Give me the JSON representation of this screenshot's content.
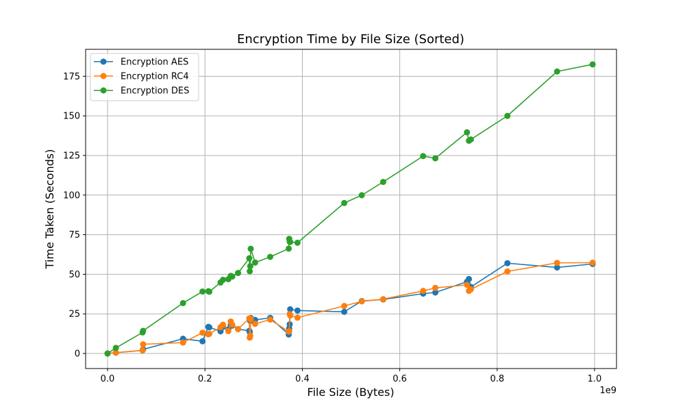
{
  "chart_data": {
    "type": "line",
    "title": "Encryption Time by File Size (Sorted)",
    "xlabel": "File Size (Bytes)",
    "ylabel": "Time Taken (Seconds)",
    "x_offset_label": "1e9",
    "xlim": [
      -0.045,
      1.045
    ],
    "ylim": [
      -9.5,
      192
    ],
    "x_ticks": [
      0.0,
      0.2,
      0.4,
      0.6,
      0.8,
      1.0
    ],
    "x_tick_labels": [
      "0.0",
      "0.2",
      "0.4",
      "0.6",
      "0.8",
      "1.0"
    ],
    "y_ticks": [
      0,
      25,
      50,
      75,
      100,
      125,
      150,
      175
    ],
    "y_tick_labels": [
      "0",
      "25",
      "50",
      "75",
      "100",
      "125",
      "150",
      "175"
    ],
    "grid": true,
    "legend_position": "top-left",
    "x": [
      0.0,
      0.017,
      0.072,
      0.073,
      0.155,
      0.195,
      0.207,
      0.209,
      0.232,
      0.237,
      0.248,
      0.253,
      0.256,
      0.268,
      0.291,
      0.292,
      0.293,
      0.294,
      0.303,
      0.334,
      0.372,
      0.373,
      0.374,
      0.375,
      0.39,
      0.486,
      0.522,
      0.566,
      0.648,
      0.673,
      0.738,
      0.742,
      0.746,
      0.821,
      0.923,
      0.996
    ],
    "series": [
      {
        "name": "Encryption AES",
        "color": "#1f77b4",
        "values": [
          0.0,
          0.5,
          2.0,
          2.6,
          9.3,
          7.7,
          16.8,
          16.5,
          14.0,
          16.8,
          15.2,
          17.9,
          17.6,
          15.4,
          14.3,
          13.6,
          20.5,
          22.4,
          21.2,
          22.5,
          12.0,
          15.8,
          18.4,
          27.9,
          27.1,
          26.3,
          33.1,
          34.1,
          37.8,
          38.5,
          45.3,
          47.0,
          42.0,
          57.0,
          54.3,
          56.5
        ]
      },
      {
        "name": "Encryption RC4",
        "color": "#ff7f0e",
        "values": [
          0.0,
          0.5,
          2.0,
          5.8,
          6.9,
          13.1,
          12.1,
          12.4,
          16.6,
          18.2,
          14.1,
          20.2,
          18.2,
          15.4,
          22.2,
          10.0,
          11.3,
          21.8,
          18.7,
          21.4,
          13.8,
          14.0,
          24.9,
          24.0,
          22.6,
          30.0,
          32.9,
          34.3,
          39.5,
          41.4,
          43.3,
          39.5,
          40.5,
          51.8,
          57.2,
          57.3
        ]
      },
      {
        "name": "Encryption DES",
        "color": "#2ca02c",
        "values": [
          0.0,
          3.5,
          13.3,
          14.3,
          31.8,
          39.1,
          39.3,
          39.0,
          44.8,
          46.5,
          46.9,
          49.0,
          48.6,
          50.8,
          60.1,
          51.9,
          55.1,
          66.1,
          57.4,
          61.0,
          66.2,
          72.4,
          70.6,
          70.4,
          69.9,
          95.0,
          99.9,
          108.3,
          124.6,
          123.2,
          139.6,
          134.3,
          135.1,
          150.0,
          178.0,
          182.5
        ]
      }
    ]
  }
}
